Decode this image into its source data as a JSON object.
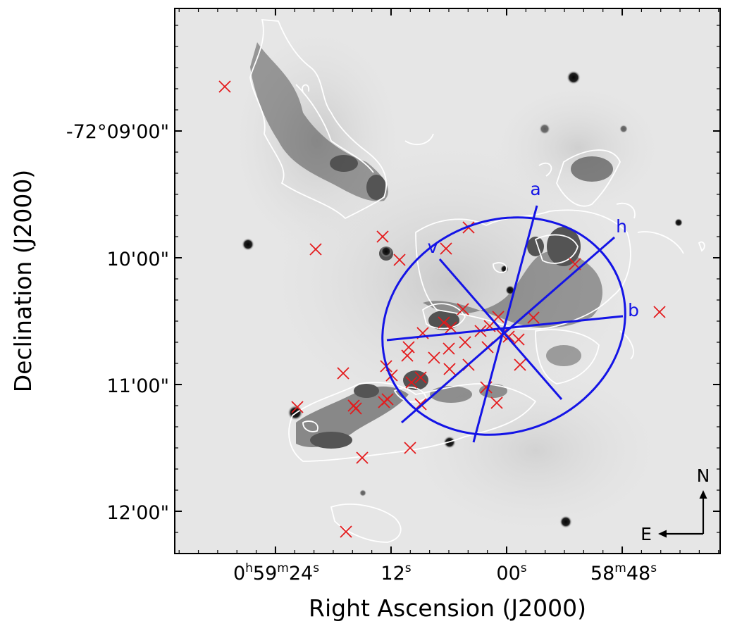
{
  "figure": {
    "y_axis_title": "Declination (J2000)",
    "x_axis_title": "Right Ascension (J2000)",
    "dec_ticks": [
      {
        "label": "-72°09'00\"",
        "arcsec": 540
      },
      {
        "label": "10'00\"",
        "arcsec": 600
      },
      {
        "label": "11'00\"",
        "arcsec": 660
      },
      {
        "label": "12'00\"",
        "arcsec": 720
      }
    ],
    "ra_ticks": [
      {
        "main": "0",
        "h": "h",
        "mid": "59",
        "m": "m",
        "sec": "24",
        "s": "s",
        "seconds": 24
      },
      {
        "main": "",
        "h": "",
        "mid": "",
        "m": "",
        "sec": "12",
        "s": "s",
        "seconds": 12
      },
      {
        "main": "",
        "h": "",
        "mid": "",
        "m": "",
        "sec": "00",
        "s": "s",
        "seconds": 0
      },
      {
        "main": "",
        "h": "",
        "mid": "58",
        "m": "m",
        "sec": "48",
        "s": "s",
        "seconds": -12
      }
    ],
    "axis_labels": {
      "a": "a",
      "h": "h",
      "v": "v",
      "b": "b"
    },
    "compass": {
      "north": "N",
      "east": "E"
    },
    "colors": {
      "ellipse": "#1414e6",
      "markers": "#e41a1c",
      "contours": "#ffffff"
    }
  }
}
